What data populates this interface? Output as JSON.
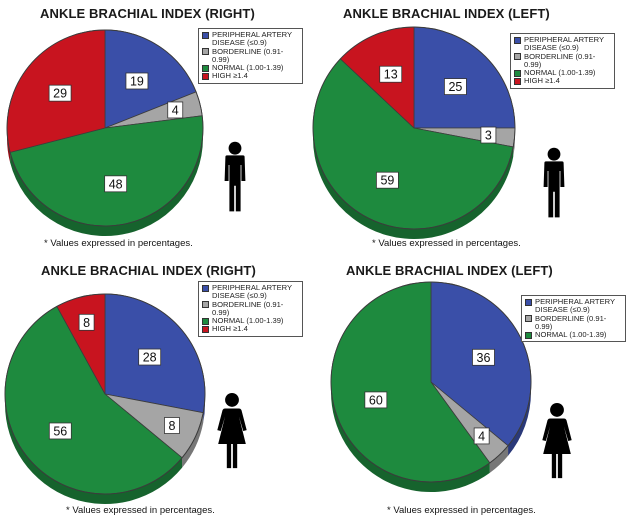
{
  "colors": {
    "PERIPHERAL ARTERY\nDISEASE (≤0.9)": "#3a4fa8",
    "BORDERLINE (0.91-0.99)": "#a5a5a5",
    "NORMAL (1.00-1.39)": "#1e8a3e",
    "HIGH ≥1.4": "#c8141f"
  },
  "chart_data": [
    {
      "type": "pie",
      "title": "ANKLE BRACHIAL INDEX (RIGHT)",
      "categories": [
        "PERIPHERAL ARTERY\nDISEASE (≤0.9)",
        "BORDERLINE (0.91-0.99)",
        "NORMAL (1.00-1.39)",
        "HIGH ≥1.4"
      ],
      "values": [
        19,
        4,
        48,
        29
      ],
      "legend": "top-right",
      "footnote": "* Values expressed in percentages.",
      "figure_icon": "male-figure-icon"
    },
    {
      "type": "pie",
      "title": "ANKLE BRACHIAL INDEX (LEFT)",
      "categories": [
        "PERIPHERAL ARTERY\nDISEASE (≤0.9)",
        "BORDERLINE (0.91-0.99)",
        "NORMAL (1.00-1.39)",
        "HIGH ≥1.4"
      ],
      "values": [
        25,
        3,
        59,
        13
      ],
      "legend": "top-right",
      "footnote": "* Values expressed in percentages.",
      "figure_icon": "male-figure-icon"
    },
    {
      "type": "pie",
      "title": "ANKLE BRACHIAL INDEX (RIGHT)",
      "categories": [
        "PERIPHERAL ARTERY\nDISEASE (≤0.9)",
        "BORDERLINE (0.91-0.99)",
        "NORMAL (1.00-1.39)",
        "HIGH ≥1.4"
      ],
      "values": [
        28,
        8,
        56,
        8
      ],
      "legend": "top-right",
      "footnote": "* Values expressed in percentages.",
      "figure_icon": "female-figure-icon"
    },
    {
      "type": "pie",
      "title": "ANKLE BRACHIAL INDEX (LEFT)",
      "categories": [
        "PERIPHERAL ARTERY\nDISEASE (≤0.9)",
        "BORDERLINE (0.91-0.99)",
        "NORMAL (1.00-1.39)"
      ],
      "values": [
        36,
        4,
        60
      ],
      "legend": "top-right",
      "footnote": "* Values expressed in percentages.",
      "figure_icon": "female-figure-icon"
    }
  ]
}
